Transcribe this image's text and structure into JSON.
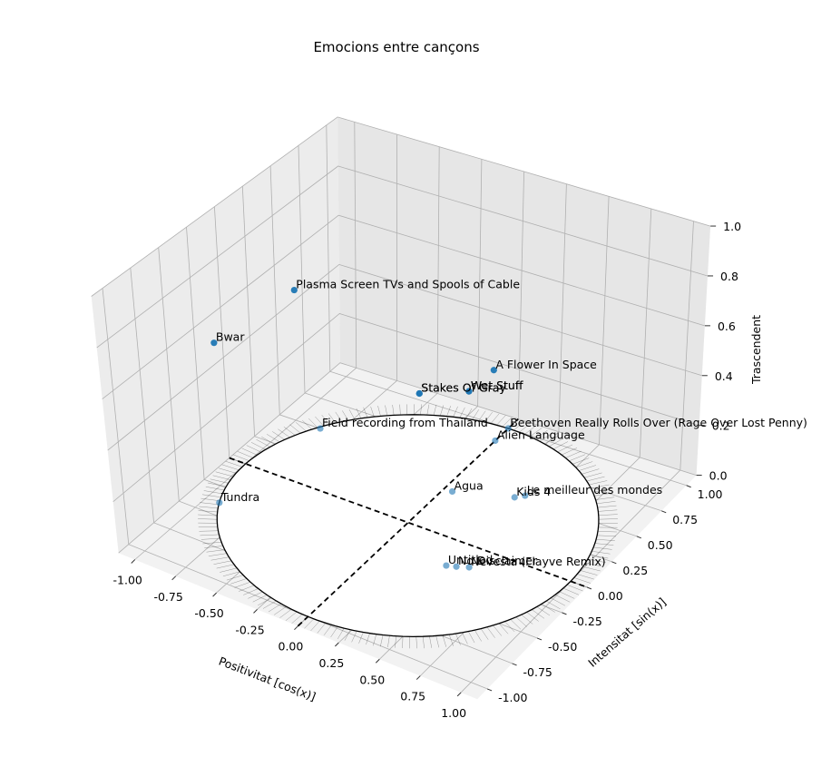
{
  "chart_data": {
    "type": "scatter3d",
    "title": "Emocions entre cançons",
    "xlabel": "Positivitat [cos(x)]",
    "ylabel": "Intensitat [sin(x)]",
    "zlabel": "Trascendent",
    "xlim": [
      -1.1,
      1.1
    ],
    "ylim": [
      -1.1,
      1.1
    ],
    "zlim": [
      0.0,
      1.0
    ],
    "xticks": [
      "-1.00",
      "-0.75",
      "-0.50",
      "-0.25",
      "0.00",
      "0.25",
      "0.50",
      "0.75",
      "1.00"
    ],
    "yticks": [
      "-1.00",
      "-0.75",
      "-0.50",
      "-0.25",
      "0.00",
      "0.25",
      "0.50",
      "0.75",
      "1.00"
    ],
    "zticks": [
      "0.0",
      "0.2",
      "0.4",
      "0.6",
      "0.8",
      "1.0"
    ],
    "grid": true,
    "marker_color": "#1f77b4",
    "unit_circle": true,
    "points": [
      {
        "label": "Bwar",
        "x": -0.56,
        "y": -0.83,
        "z": 0.9
      },
      {
        "label": "Plasma Screen TVs and Spools of Cable",
        "x": -0.5,
        "y": -0.2,
        "z": 0.9
      },
      {
        "label": "A Flower In Space",
        "x": 0.52,
        "y": 0.05,
        "z": 0.75
      },
      {
        "label": "Wet Stuff",
        "x": 0.4,
        "y": 0.0,
        "z": 0.65
      },
      {
        "label": "Wet Stuff",
        "x": 0.4,
        "y": 0.0,
        "z": 0.65
      },
      {
        "label": "Stakes Of Gray",
        "x": 0.2,
        "y": -0.15,
        "z": 0.65
      },
      {
        "label": "Stakes Of Gray",
        "x": 0.2,
        "y": -0.15,
        "z": 0.65
      },
      {
        "label": "Field recording from Thailand",
        "x": -0.85,
        "y": 0.5,
        "z": 0.0
      },
      {
        "label": "Alien Language",
        "x": 0.0,
        "y": 0.87,
        "z": 0.0
      },
      {
        "label": "Beethoven Really Rolls Over (Rage Over Lost Penny)",
        "x": 0.0,
        "y": 1.0,
        "z": 0.0
      },
      {
        "label": "Agua",
        "x": 0.05,
        "y": 0.36,
        "z": 0.0
      },
      {
        "label": "Tundra",
        "x": -0.92,
        "y": -0.39,
        "z": 0.0
      },
      {
        "label": "Kids 4",
        "x": 0.36,
        "y": 0.48,
        "z": 0.0
      },
      {
        "label": "Le meilleur des mondes",
        "x": 0.4,
        "y": 0.52,
        "z": 0.0
      },
      {
        "label": "Untitled",
        "x": 0.37,
        "y": -0.22,
        "z": 0.0
      },
      {
        "label": "No Disclaimer",
        "x": 0.42,
        "y": -0.2,
        "z": 0.0
      },
      {
        "label": "Nevesta (Flayve Remix)",
        "x": 0.48,
        "y": -0.17,
        "z": 0.0
      }
    ]
  }
}
